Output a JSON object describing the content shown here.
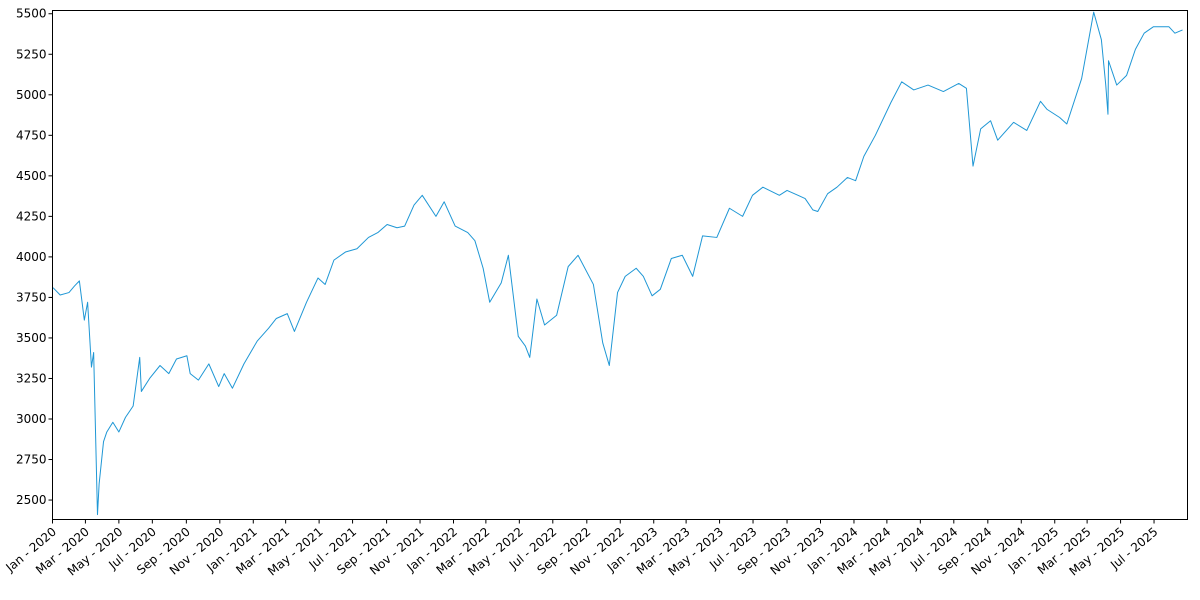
{
  "colors": {
    "series": "#1f97d5",
    "axis": "#000000",
    "background": "#ffffff"
  },
  "chart_data": {
    "type": "line",
    "title": "",
    "xlabel": "",
    "ylabel": "",
    "grid": false,
    "legend": "none",
    "xlim": [
      "2020-01-01",
      "2025-08-31"
    ],
    "ylim": [
      2380,
      5520
    ],
    "yticks": [
      2500,
      2750,
      3000,
      3250,
      3500,
      3750,
      4000,
      4250,
      4500,
      4750,
      5000,
      5250,
      5500
    ],
    "ytick_labels": [
      "2500",
      "2750",
      "3000",
      "3250",
      "3500",
      "3750",
      "4000",
      "4250",
      "4500",
      "4750",
      "5000",
      "5250",
      "5500"
    ],
    "xticks": [
      "2020-01-01",
      "2020-03-01",
      "2020-05-01",
      "2020-07-01",
      "2020-09-01",
      "2020-11-01",
      "2021-01-01",
      "2021-03-01",
      "2021-05-01",
      "2021-07-01",
      "2021-09-01",
      "2021-11-01",
      "2022-01-01",
      "2022-03-01",
      "2022-05-01",
      "2022-07-01",
      "2022-09-01",
      "2022-11-01",
      "2023-01-01",
      "2023-03-01",
      "2023-05-01",
      "2023-07-01",
      "2023-09-01",
      "2023-11-01",
      "2024-01-01",
      "2024-03-01",
      "2024-05-01",
      "2024-07-01",
      "2024-09-01",
      "2024-11-01",
      "2025-01-01",
      "2025-03-01",
      "2025-05-01",
      "2025-07-01"
    ],
    "xtick_labels": [
      "Jan - 2020",
      "Mar - 2020",
      "May - 2020",
      "Jul - 2020",
      "Sep - 2020",
      "Nov - 2020",
      "Jan - 2021",
      "Mar - 2021",
      "May - 2021",
      "Jul - 2021",
      "Sep - 2021",
      "Nov - 2021",
      "Jan - 2022",
      "Mar - 2022",
      "May - 2022",
      "Jul - 2022",
      "Sep - 2022",
      "Nov - 2022",
      "Jan - 2023",
      "Mar - 2023",
      "May - 2023",
      "Jul - 2023",
      "Sep - 2023",
      "Nov - 2023",
      "Jan - 2024",
      "Mar - 2024",
      "May - 2024",
      "Jul - 2024",
      "Sep - 2024",
      "Nov - 2024",
      "Jan - 2025",
      "Mar - 2025",
      "May - 2025",
      "Jul - 2025"
    ],
    "series": [
      {
        "color": "#1f97d5",
        "x": [
          "2020-01-02",
          "2020-01-15",
          "2020-01-31",
          "2020-02-10",
          "2020-02-19",
          "2020-02-28",
          "2020-03-05",
          "2020-03-12",
          "2020-03-16",
          "2020-03-23",
          "2020-03-26",
          "2020-04-03",
          "2020-04-09",
          "2020-04-20",
          "2020-05-01",
          "2020-05-13",
          "2020-05-27",
          "2020-06-08",
          "2020-06-11",
          "2020-06-26",
          "2020-07-15",
          "2020-07-31",
          "2020-08-14",
          "2020-09-02",
          "2020-09-08",
          "2020-09-23",
          "2020-10-12",
          "2020-10-30",
          "2020-11-09",
          "2020-11-24",
          "2020-12-15",
          "2021-01-08",
          "2021-01-29",
          "2021-02-12",
          "2021-03-04",
          "2021-03-17",
          "2021-04-08",
          "2021-04-29",
          "2021-05-12",
          "2021-05-28",
          "2021-06-18",
          "2021-07-09",
          "2021-07-30",
          "2021-08-16",
          "2021-09-02",
          "2021-09-20",
          "2021-10-04",
          "2021-10-21",
          "2021-11-05",
          "2021-11-30",
          "2021-12-15",
          "2022-01-04",
          "2022-01-27",
          "2022-02-09",
          "2022-02-24",
          "2022-03-08",
          "2022-03-29",
          "2022-04-11",
          "2022-04-29",
          "2022-05-12",
          "2022-05-20",
          "2022-06-02",
          "2022-06-16",
          "2022-07-08",
          "2022-07-29",
          "2022-08-16",
          "2022-09-13",
          "2022-09-30",
          "2022-10-12",
          "2022-10-27",
          "2022-11-10",
          "2022-11-30",
          "2022-12-13",
          "2022-12-29",
          "2023-01-13",
          "2023-02-02",
          "2023-02-22",
          "2023-03-13",
          "2023-03-31",
          "2023-04-26",
          "2023-05-19",
          "2023-06-12",
          "2023-06-30",
          "2023-07-19",
          "2023-07-31",
          "2023-08-18",
          "2023-09-01",
          "2023-09-21",
          "2023-10-04",
          "2023-10-18",
          "2023-10-27",
          "2023-11-14",
          "2023-12-01",
          "2023-12-20",
          "2024-01-04",
          "2024-01-19",
          "2024-02-09",
          "2024-03-08",
          "2024-03-28",
          "2024-04-19",
          "2024-05-15",
          "2024-06-12",
          "2024-07-10",
          "2024-07-24",
          "2024-08-05",
          "2024-08-19",
          "2024-09-06",
          "2024-09-19",
          "2024-10-18",
          "2024-11-11",
          "2024-12-06",
          "2024-12-18",
          "2025-01-10",
          "2025-01-23",
          "2025-02-19",
          "2025-03-13",
          "2025-03-27",
          "2025-04-04",
          "2025-04-08",
          "2025-04-09",
          "2025-04-24",
          "2025-05-12",
          "2025-05-28",
          "2025-06-13",
          "2025-06-30",
          "2025-07-28",
          "2025-08-08",
          "2025-08-22"
        ],
        "y": [
          3810,
          3765,
          3780,
          3820,
          3852,
          3610,
          3720,
          3320,
          3410,
          2410,
          2600,
          2860,
          2920,
          2980,
          2920,
          3010,
          3080,
          3380,
          3170,
          3250,
          3330,
          3280,
          3370,
          3390,
          3280,
          3240,
          3340,
          3200,
          3280,
          3190,
          3340,
          3480,
          3560,
          3620,
          3650,
          3540,
          3720,
          3870,
          3830,
          3980,
          4030,
          4050,
          4120,
          4150,
          4200,
          4180,
          4190,
          4320,
          4380,
          4250,
          4340,
          4190,
          4150,
          4100,
          3930,
          3720,
          3840,
          4010,
          3510,
          3450,
          3380,
          3740,
          3580,
          3640,
          3940,
          4010,
          3830,
          3470,
          3330,
          3780,
          3880,
          3930,
          3880,
          3760,
          3800,
          3990,
          4010,
          3880,
          4130,
          4120,
          4300,
          4250,
          4380,
          4430,
          4410,
          4380,
          4410,
          4380,
          4360,
          4290,
          4280,
          4390,
          4430,
          4490,
          4470,
          4620,
          4750,
          4950,
          5080,
          5030,
          5060,
          5020,
          5070,
          5040,
          4560,
          4790,
          4840,
          4720,
          4830,
          4780,
          4960,
          4910,
          4860,
          4820,
          5100,
          5510,
          5340,
          5060,
          4880,
          5210,
          5060,
          5120,
          5280,
          5380,
          5420,
          5420,
          5380,
          5400
        ]
      }
    ]
  }
}
